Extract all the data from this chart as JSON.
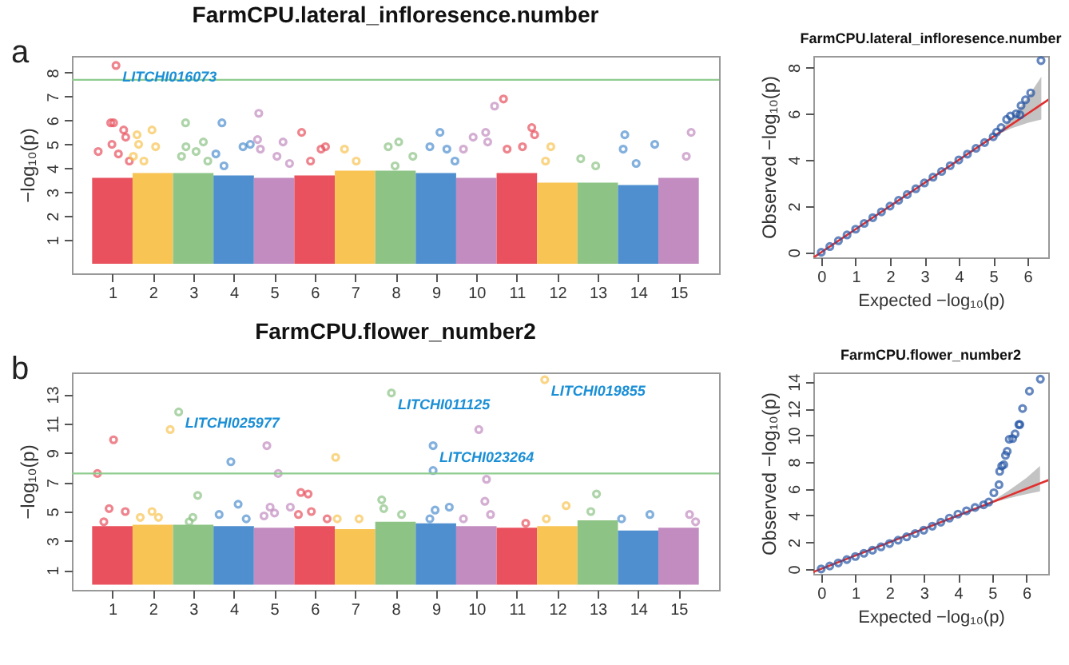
{
  "chart_data": [
    {
      "type": "scatter",
      "title": "FarmCPU.lateral_infloresence.number",
      "ylabel": "−log₁₀(p)",
      "xlim": [
        0,
        16
      ],
      "xticks": [
        1,
        2,
        3,
        4,
        5,
        6,
        7,
        8,
        9,
        10,
        11,
        12,
        13,
        14,
        15
      ],
      "ylim": [
        -0.4,
        8.7
      ],
      "yticks": [
        1,
        2,
        3,
        4,
        5,
        6,
        7,
        8
      ],
      "ref_lines": [
        {
          "axis": "y",
          "value": 7.7,
          "color": "#8fcc8f"
        }
      ],
      "annotations": [
        "a",
        {
          "text": "LITCHI016073",
          "x": 1.09,
          "y": 8.3
        }
      ],
      "series": [
        {
          "type": "area",
          "color": "#e8515d",
          "x": [
            0.5,
            1.5
          ],
          "values": [
            3.6,
            3.6
          ]
        },
        {
          "type": "area",
          "color": "#f8c454",
          "x": [
            1.5,
            2.5
          ],
          "values": [
            3.8,
            3.8
          ]
        },
        {
          "type": "area",
          "color": "#8dc385",
          "x": [
            2.5,
            3.5
          ],
          "values": [
            3.8,
            3.8
          ]
        },
        {
          "type": "area",
          "color": "#4f8fcf",
          "x": [
            3.5,
            4.5
          ],
          "values": [
            3.7,
            3.7
          ]
        },
        {
          "type": "area",
          "color": "#c28cc0",
          "x": [
            4.5,
            5.5
          ],
          "values": [
            3.6,
            3.6
          ]
        },
        {
          "type": "area",
          "color": "#e8515d",
          "x": [
            5.5,
            6.5
          ],
          "values": [
            3.7,
            3.7
          ]
        },
        {
          "type": "area",
          "color": "#f8c454",
          "x": [
            6.5,
            7.5
          ],
          "values": [
            3.9,
            3.9
          ]
        },
        {
          "type": "area",
          "color": "#8dc385",
          "x": [
            7.5,
            8.5
          ],
          "values": [
            3.9,
            3.9
          ]
        },
        {
          "type": "area",
          "color": "#4f8fcf",
          "x": [
            8.5,
            9.5
          ],
          "values": [
            3.8,
            3.8
          ]
        },
        {
          "type": "area",
          "color": "#c28cc0",
          "x": [
            9.5,
            10.5
          ],
          "values": [
            3.6,
            3.6
          ]
        },
        {
          "type": "area",
          "color": "#e8515d",
          "x": [
            10.5,
            11.5
          ],
          "values": [
            3.8,
            3.8
          ]
        },
        {
          "type": "area",
          "color": "#f8c454",
          "x": [
            11.5,
            12.5
          ],
          "values": [
            3.4,
            3.4
          ]
        },
        {
          "type": "area",
          "color": "#8dc385",
          "x": [
            12.5,
            13.5
          ],
          "values": [
            3.4,
            3.4
          ]
        },
        {
          "type": "area",
          "color": "#4f8fcf",
          "x": [
            13.5,
            14.5
          ],
          "values": [
            3.3,
            3.3
          ]
        },
        {
          "type": "area",
          "color": "#c28cc0",
          "x": [
            14.5,
            15.5
          ],
          "values": [
            3.6,
            3.6
          ]
        },
        {
          "marker": "circle",
          "color": "#e8515d",
          "x": [
            1.09,
            0.96,
            1.03,
            1.28,
            0.65,
            0.99,
            1.33,
            1.15,
            1.42,
            5.68,
            6.27,
            6.16,
            5.9,
            10.67,
            11.37,
            11.44,
            10.76,
            11.14
          ],
          "values": [
            8.3,
            5.9,
            5.9,
            5.6,
            4.7,
            5.0,
            5.3,
            4.6,
            4.3,
            5.5,
            4.9,
            4.8,
            4.3,
            6.9,
            5.7,
            5.4,
            4.8,
            4.9
          ]
        },
        {
          "marker": "circle",
          "color": "#f8c454",
          "x": [
            1.61,
            1.98,
            1.65,
            1.52,
            2.07,
            1.78,
            6.74,
            7.03,
            11.84,
            11.71
          ],
          "values": [
            5.4,
            5.6,
            5.0,
            4.5,
            4.9,
            4.3,
            4.8,
            4.3,
            4.9,
            4.3
          ]
        },
        {
          "marker": "circle",
          "color": "#8dc385",
          "x": [
            2.81,
            3.25,
            2.82,
            3.07,
            2.71,
            3.36,
            7.82,
            8.08,
            8.43,
            7.99,
            12.58,
            12.95
          ],
          "values": [
            5.9,
            5.1,
            4.9,
            4.7,
            4.5,
            4.3,
            4.9,
            5.1,
            4.5,
            4.1,
            4.4,
            4.1
          ]
        },
        {
          "marker": "circle",
          "color": "#4f8fcf",
          "x": [
            3.71,
            3.56,
            4.23,
            4.41,
            3.76,
            9.1,
            8.85,
            9.27,
            9.47,
            13.67,
            14.41,
            13.63,
            13.95
          ],
          "values": [
            5.9,
            4.6,
            4.9,
            5.0,
            4.1,
            5.5,
            4.9,
            4.8,
            4.3,
            5.4,
            5.0,
            4.8,
            4.2
          ]
        },
        {
          "marker": "circle",
          "color": "#c28cc0",
          "x": [
            4.62,
            4.59,
            5.22,
            5.07,
            4.66,
            5.38,
            10.45,
            9.92,
            10.23,
            10.28,
            9.68,
            15.31,
            15.19
          ],
          "values": [
            6.3,
            5.2,
            5.1,
            4.5,
            4.8,
            4.2,
            6.6,
            5.3,
            5.5,
            5.1,
            4.8,
            5.5,
            4.5
          ]
        }
      ]
    },
    {
      "type": "scatter",
      "title": "FarmCPU.lateral_infloresence.number",
      "xlabel": "Expected −log₁₀(p)",
      "ylabel": "Observed −log₁₀(p)",
      "xlim": [
        -0.23,
        6.6
      ],
      "xticks": [
        0,
        1,
        2,
        3,
        4,
        5,
        6
      ],
      "ylim": [
        -0.22,
        8.5
      ],
      "yticks": [
        0,
        2,
        4,
        6,
        8
      ],
      "series": [
        {
          "type": "line",
          "color": "#e03030",
          "x": [
            -0.22,
            5.0,
            5.5,
            6.0,
            6.4,
            6.6
          ],
          "values": [
            -0.22,
            5.0,
            5.5,
            6.0,
            6.4,
            6.6
          ],
          "lower": [
            null,
            5.0,
            5.35,
            5.6,
            5.75,
            null
          ],
          "upper": [
            null,
            5.0,
            5.75,
            6.7,
            7.6,
            null
          ]
        },
        {
          "marker": "circle",
          "color": "#2455a4",
          "x": [
            0,
            0.25,
            0.5,
            0.75,
            1,
            1.25,
            1.5,
            1.75,
            2,
            2.25,
            2.5,
            2.75,
            3,
            3.25,
            3.5,
            3.75,
            4,
            4.25,
            4.5,
            4.75,
            5.0,
            5.1,
            5.23,
            5.39,
            5.5,
            5.67,
            5.78,
            5.81,
            5.94,
            6.09,
            6.39
          ],
          "values": [
            0,
            0.25,
            0.5,
            0.75,
            1,
            1.25,
            1.5,
            1.75,
            2,
            2.25,
            2.5,
            2.75,
            3,
            3.25,
            3.5,
            3.75,
            4,
            4.25,
            4.5,
            4.75,
            5.0,
            5.2,
            5.4,
            5.75,
            5.9,
            6.0,
            5.95,
            6.35,
            6.6,
            6.9,
            8.3
          ]
        }
      ]
    },
    {
      "type": "scatter",
      "title": "FarmCPU.flower_number2",
      "ylabel": "−log₁₀(p)",
      "xlim": [
        0,
        16
      ],
      "xticks": [
        1,
        2,
        3,
        4,
        5,
        6,
        7,
        8,
        9,
        10,
        11,
        12,
        13,
        14,
        15
      ],
      "ylim": [
        -0.35,
        14.5
      ],
      "yticks": [
        1,
        3,
        5,
        7,
        9,
        11,
        13
      ],
      "ref_lines": [
        {
          "axis": "y",
          "value": 7.6,
          "color": "#8fcc8f"
        }
      ],
      "annotations": [
        "b",
        {
          "text": "LITCHI025977",
          "x": 2.64,
          "y": 11.8
        },
        {
          "text": "LITCHI011125",
          "x": 7.9,
          "y": 13.1
        },
        {
          "text": "LITCHI019855",
          "x": 11.69,
          "y": 14.0
        },
        {
          "text": "LITCHI023264",
          "x": 8.93,
          "y": 9.5
        }
      ],
      "series": [
        {
          "type": "area",
          "color": "#e8515d",
          "x": [
            0.5,
            1.5
          ],
          "values": [
            4.0,
            4.0
          ]
        },
        {
          "type": "area",
          "color": "#f8c454",
          "x": [
            1.5,
            2.5
          ],
          "values": [
            4.1,
            4.1
          ]
        },
        {
          "type": "area",
          "color": "#8dc385",
          "x": [
            2.5,
            3.5
          ],
          "values": [
            4.1,
            4.1
          ]
        },
        {
          "type": "area",
          "color": "#4f8fcf",
          "x": [
            3.5,
            4.5
          ],
          "values": [
            4.0,
            4.0
          ]
        },
        {
          "type": "area",
          "color": "#c28cc0",
          "x": [
            4.5,
            5.5
          ],
          "values": [
            3.9,
            3.9
          ]
        },
        {
          "type": "area",
          "color": "#e8515d",
          "x": [
            5.5,
            6.5
          ],
          "values": [
            4.0,
            4.0
          ]
        },
        {
          "type": "area",
          "color": "#f8c454",
          "x": [
            6.5,
            7.5
          ],
          "values": [
            3.8,
            3.8
          ]
        },
        {
          "type": "area",
          "color": "#8dc385",
          "x": [
            7.5,
            8.5
          ],
          "values": [
            4.3,
            4.3
          ]
        },
        {
          "type": "area",
          "color": "#4f8fcf",
          "x": [
            8.5,
            9.5
          ],
          "values": [
            4.2,
            4.2
          ]
        },
        {
          "type": "area",
          "color": "#c28cc0",
          "x": [
            9.5,
            10.5
          ],
          "values": [
            4.0,
            4.0
          ]
        },
        {
          "type": "area",
          "color": "#e8515d",
          "x": [
            10.5,
            11.5
          ],
          "values": [
            3.9,
            3.9
          ]
        },
        {
          "type": "area",
          "color": "#f8c454",
          "x": [
            11.5,
            12.5
          ],
          "values": [
            4.0,
            4.0
          ]
        },
        {
          "type": "area",
          "color": "#8dc385",
          "x": [
            12.5,
            13.5
          ],
          "values": [
            4.4,
            4.4
          ]
        },
        {
          "type": "area",
          "color": "#4f8fcf",
          "x": [
            13.5,
            14.5
          ],
          "values": [
            3.7,
            3.7
          ]
        },
        {
          "type": "area",
          "color": "#c28cc0",
          "x": [
            14.5,
            15.5
          ],
          "values": [
            3.9,
            3.9
          ]
        },
        {
          "marker": "circle",
          "color": "#e8515d",
          "x": [
            0.63,
            1.03,
            0.92,
            1.32,
            0.79,
            5.66,
            5.84,
            5.92,
            5.6,
            6.31,
            11.22
          ],
          "values": [
            7.6,
            9.9,
            5.2,
            5.0,
            4.3,
            6.3,
            6.2,
            5.0,
            4.8,
            4.5,
            4.2
          ]
        },
        {
          "marker": "circle",
          "color": "#f8c454",
          "x": [
            2.43,
            1.98,
            1.69,
            2.14,
            6.52,
            7.1,
            6.56,
            11.69,
            12.22,
            11.73
          ],
          "values": [
            10.6,
            5.0,
            4.6,
            4.6,
            8.7,
            4.5,
            4.5,
            14.0,
            5.4,
            4.5
          ]
        },
        {
          "marker": "circle",
          "color": "#8dc385",
          "x": [
            2.64,
            3.11,
            2.99,
            2.9,
            7.9,
            7.66,
            8.15,
            7.71,
            12.97,
            12.83
          ],
          "values": [
            11.8,
            6.1,
            4.6,
            4.3,
            13.1,
            5.8,
            4.8,
            5.2,
            6.2,
            5.0
          ]
        },
        {
          "marker": "circle",
          "color": "#4f8fcf",
          "x": [
            3.93,
            4.11,
            3.64,
            4.31,
            8.93,
            8.93,
            8.98,
            9.33,
            8.85,
            13.59,
            14.29
          ],
          "values": [
            8.4,
            5.5,
            4.8,
            4.5,
            9.5,
            7.8,
            5.1,
            5.3,
            4.5,
            4.5,
            4.8
          ]
        },
        {
          "marker": "circle",
          "color": "#c28cc0",
          "x": [
            4.82,
            5.1,
            4.9,
            5.4,
            4.75,
            5.01,
            10.06,
            10.25,
            10.21,
            10.35,
            9.68,
            15.27,
            15.42
          ],
          "values": [
            9.5,
            7.6,
            5.3,
            5.3,
            4.7,
            4.9,
            10.6,
            7.2,
            5.7,
            4.8,
            4.5,
            4.8,
            4.3
          ]
        }
      ]
    },
    {
      "type": "scatter",
      "title": "FarmCPU.flower_number2",
      "xlabel": "Expected −log₁₀(p)",
      "ylabel": "Observed −log₁₀(p)",
      "xlim": [
        -0.23,
        6.64
      ],
      "xticks": [
        0,
        1,
        2,
        3,
        4,
        5,
        6
      ],
      "ylim": [
        -0.37,
        14.7
      ],
      "yticks": [
        0,
        2,
        4,
        6,
        8,
        10,
        12,
        14
      ],
      "series": [
        {
          "type": "line",
          "color": "#e03030",
          "x": [
            -0.23,
            5.0,
            5.5,
            6.0,
            6.4,
            6.64
          ],
          "values": [
            -0.23,
            5.0,
            5.5,
            6.0,
            6.4,
            6.64
          ],
          "lower": [
            null,
            4.95,
            5.3,
            5.6,
            5.8,
            null
          ],
          "upper": [
            null,
            5.05,
            5.9,
            6.8,
            7.7,
            null
          ]
        },
        {
          "marker": "circle",
          "color": "#2455a4",
          "x": [
            0,
            0.25,
            0.5,
            0.75,
            1,
            1.25,
            1.5,
            1.75,
            2,
            2.25,
            2.5,
            2.75,
            3,
            3.25,
            3.5,
            3.75,
            4,
            4.25,
            4.5,
            4.75,
            4.9,
            5.05,
            5.2,
            5.22,
            5.28,
            5.34,
            5.39,
            5.44,
            5.5,
            5.6,
            5.67,
            5.78,
            5.81,
            5.89,
            6.09,
            6.41
          ],
          "values": [
            0,
            0.22,
            0.45,
            0.7,
            0.93,
            1.17,
            1.4,
            1.65,
            1.9,
            2.15,
            2.4,
            2.65,
            2.9,
            3.2,
            3.5,
            3.8,
            4.1,
            4.35,
            4.6,
            4.8,
            5.0,
            5.7,
            6.3,
            7.3,
            7.7,
            7.8,
            8.5,
            8.8,
            9.7,
            9.75,
            10.1,
            10.8,
            10.8,
            12.0,
            13.3,
            14.2
          ]
        }
      ]
    }
  ]
}
